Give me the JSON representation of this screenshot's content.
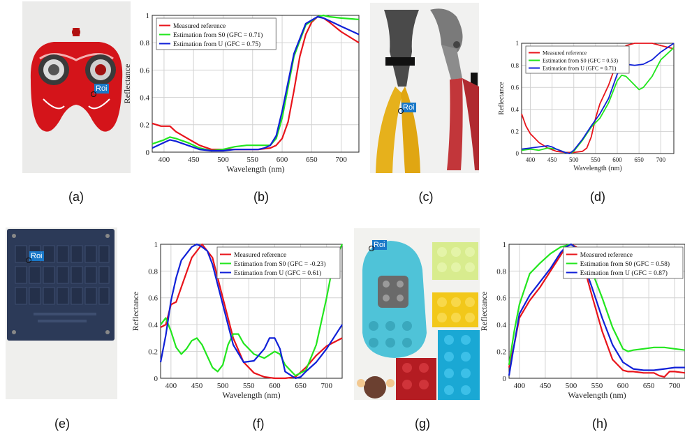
{
  "captions": [
    "(a)",
    "(b)",
    "(c)",
    "(d)",
    "(e)",
    "(f)",
    "(g)",
    "(h)"
  ],
  "roi_label": "Roi",
  "colors": {
    "measured": "#e8141b",
    "s0": "#22e61e",
    "u": "#1020d8"
  },
  "charts": [
    {
      "id": "b",
      "chart_data": {
        "type": "line",
        "xlabel": "Wavelength (nm)",
        "ylabel": "Reflectance",
        "xlim": [
          380,
          730
        ],
        "ylim": [
          0,
          1
        ],
        "xticks": [
          400,
          450,
          500,
          550,
          600,
          650,
          700
        ],
        "yticks": [
          0,
          0.2,
          0.4,
          0.6,
          0.8,
          1
        ],
        "ytick_labels": [
          "0",
          "0.2",
          "0.4",
          "0.6",
          "0.8",
          "1"
        ],
        "legend_position": "top-left",
        "series": [
          {
            "name": "Measured reference",
            "color": "#e8141b",
            "x": [
              380,
              395,
              410,
              420,
              440,
              460,
              480,
              500,
              520,
              540,
              560,
              580,
              590,
              600,
              610,
              620,
              630,
              640,
              650,
              660,
              670,
              680,
              700,
              730
            ],
            "y": [
              0.21,
              0.19,
              0.19,
              0.15,
              0.1,
              0.05,
              0.02,
              0.02,
              0.02,
              0.02,
              0.02,
              0.03,
              0.05,
              0.1,
              0.22,
              0.45,
              0.7,
              0.86,
              0.95,
              0.99,
              0.98,
              0.95,
              0.88,
              0.8
            ]
          },
          {
            "name": "Estimation from S0 (GFC = 0.71)",
            "color": "#22e61e",
            "x": [
              380,
              400,
              410,
              420,
              440,
              460,
              480,
              500,
              520,
              540,
              560,
              570,
              580,
              590,
              600,
              620,
              640,
              660,
              670,
              680,
              700,
              730
            ],
            "y": [
              0.06,
              0.09,
              0.11,
              0.1,
              0.07,
              0.03,
              0.01,
              0.02,
              0.04,
              0.05,
              0.05,
              0.05,
              0.05,
              0.1,
              0.25,
              0.7,
              0.93,
              0.99,
              1.0,
              0.99,
              0.98,
              0.97
            ]
          },
          {
            "name": "Estimation from U (GFC = 0.75)",
            "color": "#1020d8",
            "x": [
              380,
              400,
              410,
              420,
              440,
              460,
              480,
              500,
              520,
              540,
              560,
              570,
              580,
              590,
              600,
              620,
              640,
              660,
              670,
              680,
              700,
              730
            ],
            "y": [
              0.03,
              0.07,
              0.09,
              0.08,
              0.05,
              0.02,
              0.01,
              0.01,
              0.02,
              0.02,
              0.02,
              0.03,
              0.05,
              0.12,
              0.3,
              0.72,
              0.94,
              0.99,
              0.98,
              0.96,
              0.92,
              0.86
            ]
          }
        ]
      }
    },
    {
      "id": "d",
      "chart_data": {
        "type": "line",
        "xlabel": "Wavelength (nm)",
        "ylabel": "Reflectance",
        "xlim": [
          380,
          730
        ],
        "ylim": [
          0,
          1
        ],
        "xticks": [
          400,
          450,
          500,
          550,
          600,
          650,
          700
        ],
        "yticks": [
          0,
          0.2,
          0.4,
          0.6,
          0.8,
          1
        ],
        "ytick_labels": [
          "0",
          "0.2",
          "0.4",
          "0.6",
          "0.8",
          "1"
        ],
        "legend_position": "top-left",
        "series": [
          {
            "name": "Measured reference",
            "color": "#e8141b",
            "x": [
              380,
              390,
              400,
              420,
              440,
              460,
              480,
              500,
              520,
              530,
              540,
              550,
              560,
              580,
              600,
              620,
              640,
              660,
              680,
              700,
              730
            ],
            "y": [
              0.36,
              0.25,
              0.18,
              0.1,
              0.05,
              0.02,
              0.01,
              0.01,
              0.02,
              0.05,
              0.15,
              0.32,
              0.45,
              0.62,
              0.84,
              0.98,
              1.0,
              1.0,
              1.0,
              0.98,
              0.95
            ]
          },
          {
            "name": "Estimation from S0 (GFC = 0.53)",
            "color": "#22e61e",
            "x": [
              380,
              400,
              420,
              440,
              460,
              480,
              490,
              500,
              520,
              540,
              560,
              580,
              600,
              610,
              620,
              640,
              650,
              660,
              680,
              700,
              730
            ],
            "y": [
              0.03,
              0.04,
              0.03,
              0.05,
              0.04,
              0.01,
              0.0,
              0.02,
              0.12,
              0.24,
              0.32,
              0.46,
              0.66,
              0.71,
              0.7,
              0.62,
              0.58,
              0.6,
              0.7,
              0.85,
              0.96
            ]
          },
          {
            "name": "Estimation from U (GFC = 0.71)",
            "color": "#1020d8",
            "x": [
              380,
              400,
              420,
              440,
              450,
              460,
              480,
              490,
              500,
              520,
              540,
              560,
              580,
              600,
              610,
              620,
              640,
              660,
              680,
              700,
              730
            ],
            "y": [
              0.04,
              0.05,
              0.06,
              0.07,
              0.06,
              0.04,
              0.01,
              0.0,
              0.03,
              0.13,
              0.25,
              0.36,
              0.5,
              0.72,
              0.8,
              0.81,
              0.8,
              0.81,
              0.85,
              0.92,
              1.0
            ]
          }
        ]
      }
    },
    {
      "id": "f",
      "chart_data": {
        "type": "line",
        "xlabel": "Wavelength (nm)",
        "ylabel": "Reflectance",
        "xlim": [
          380,
          730
        ],
        "ylim": [
          0,
          1
        ],
        "xticks": [
          400,
          450,
          500,
          550,
          600,
          650,
          700
        ],
        "yticks": [
          0,
          0.2,
          0.4,
          0.6,
          0.8,
          1
        ],
        "ytick_labels": [
          "0",
          "0.2",
          "0.4",
          "0.6",
          "0.8",
          "1"
        ],
        "legend_position": "top-right",
        "series": [
          {
            "name": "Measured reference",
            "color": "#e8141b",
            "x": [
              380,
              390,
              400,
              410,
              420,
              440,
              460,
              480,
              500,
              520,
              540,
              560,
              580,
              600,
              620,
              640,
              660,
              680,
              700,
              730
            ],
            "y": [
              0.38,
              0.4,
              0.55,
              0.57,
              0.68,
              0.9,
              1.0,
              0.9,
              0.6,
              0.3,
              0.12,
              0.04,
              0.01,
              0.0,
              0.0,
              0.01,
              0.08,
              0.17,
              0.24,
              0.3
            ]
          },
          {
            "name": "Estimation from S0 (GFC = -0.23)",
            "color": "#22e61e",
            "x": [
              380,
              390,
              400,
              410,
              420,
              430,
              440,
              450,
              460,
              480,
              490,
              500,
              510,
              520,
              530,
              540,
              560,
              580,
              600,
              610,
              620,
              640,
              660,
              680,
              700,
              710,
              720,
              730
            ],
            "y": [
              0.4,
              0.45,
              0.35,
              0.23,
              0.18,
              0.22,
              0.28,
              0.3,
              0.25,
              0.08,
              0.05,
              0.1,
              0.25,
              0.33,
              0.33,
              0.26,
              0.18,
              0.15,
              0.2,
              0.18,
              0.1,
              0.02,
              0.06,
              0.25,
              0.6,
              0.8,
              0.92,
              1.0
            ]
          },
          {
            "name": "Estimation from U (GFC = 0.61)",
            "color": "#1020d8",
            "x": [
              380,
              390,
              400,
              410,
              420,
              440,
              450,
              460,
              470,
              480,
              500,
              520,
              540,
              560,
              580,
              590,
              600,
              610,
              620,
              640,
              650,
              660,
              680,
              700,
              730
            ],
            "y": [
              0.12,
              0.32,
              0.58,
              0.75,
              0.88,
              0.98,
              1.0,
              0.98,
              0.95,
              0.85,
              0.55,
              0.25,
              0.12,
              0.13,
              0.22,
              0.3,
              0.3,
              0.22,
              0.05,
              0.0,
              0.01,
              0.05,
              0.12,
              0.22,
              0.4
            ]
          }
        ]
      }
    },
    {
      "id": "h",
      "chart_data": {
        "type": "line",
        "xlabel": "Wavelength (nm)",
        "ylabel": "Reflectance",
        "xlim": [
          380,
          720
        ],
        "ylim": [
          0,
          1
        ],
        "xticks": [
          400,
          450,
          500,
          550,
          600,
          650,
          700
        ],
        "yticks": [
          0,
          0.2,
          0.4,
          0.6,
          0.8,
          1
        ],
        "ytick_labels": [
          "0",
          "0.2",
          "0.4",
          "0.6",
          "0.8",
          "1"
        ],
        "legend_position": "top-right",
        "series": [
          {
            "name": "Measured reference",
            "color": "#e8141b",
            "x": [
              380,
              390,
              400,
              420,
              440,
              460,
              480,
              490,
              500,
              510,
              520,
              540,
              560,
              580,
              600,
              610,
              620,
              640,
              660,
              670,
              680,
              690,
              700,
              720
            ],
            "y": [
              0.08,
              0.25,
              0.45,
              0.58,
              0.68,
              0.8,
              0.92,
              0.98,
              1.0,
              0.98,
              0.9,
              0.62,
              0.35,
              0.14,
              0.06,
              0.05,
              0.05,
              0.04,
              0.04,
              0.02,
              0.01,
              0.05,
              0.05,
              0.04
            ]
          },
          {
            "name": "Estimation from S0 (GFC = 0.58)",
            "color": "#22e61e",
            "x": [
              380,
              390,
              400,
              420,
              440,
              460,
              480,
              500,
              520,
              540,
              560,
              580,
              600,
              610,
              620,
              640,
              660,
              680,
              700,
              720
            ],
            "y": [
              0.1,
              0.35,
              0.55,
              0.78,
              0.86,
              0.93,
              0.98,
              1.0,
              0.94,
              0.8,
              0.6,
              0.38,
              0.22,
              0.2,
              0.21,
              0.22,
              0.23,
              0.23,
              0.22,
              0.21
            ]
          },
          {
            "name": "Estimation from U (GFC = 0.87)",
            "color": "#1020d8",
            "x": [
              380,
              390,
              400,
              420,
              440,
              460,
              480,
              490,
              500,
              510,
              520,
              540,
              560,
              580,
              600,
              620,
              640,
              660,
              680,
              700,
              720
            ],
            "y": [
              0.02,
              0.25,
              0.48,
              0.62,
              0.72,
              0.82,
              0.94,
              0.98,
              1.0,
              0.97,
              0.9,
              0.68,
              0.45,
              0.25,
              0.12,
              0.07,
              0.06,
              0.06,
              0.07,
              0.08,
              0.08
            ]
          }
        ]
      }
    }
  ]
}
